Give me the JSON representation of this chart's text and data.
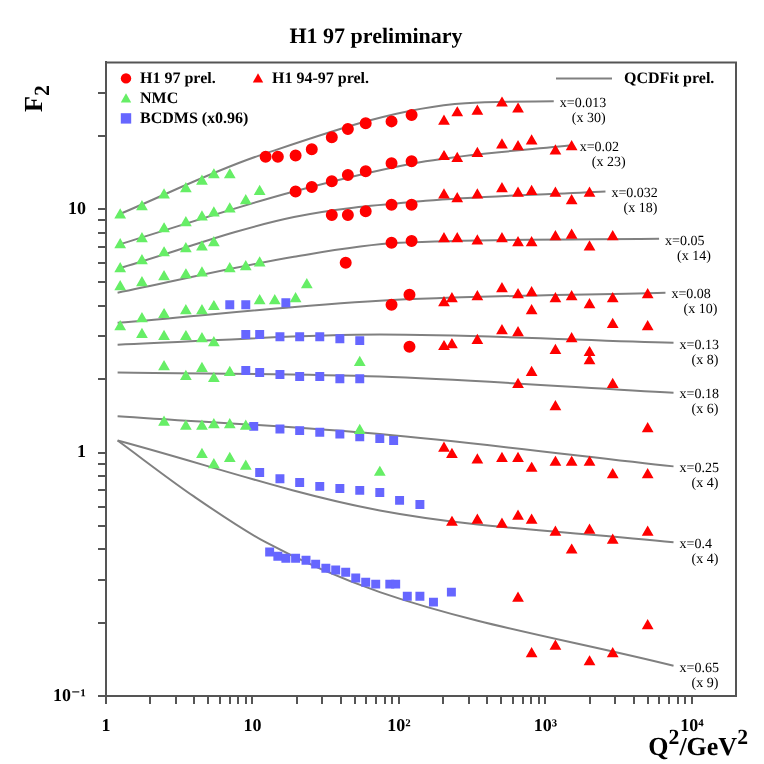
{
  "chart_data": {
    "type": "scatter",
    "title": "H1 97 preliminary",
    "xlabel": "Q$^{2}$/GeV$^{2}$",
    "ylabel": "F$_{2}$",
    "log": "xy",
    "xlim": [
      1,
      20000
    ],
    "ylim": [
      0.1,
      40
    ],
    "xticks": [
      1,
      {
        "value": 2,
        "label": null
      },
      {
        "value": 3,
        "label": null
      },
      {
        "value": 4,
        "label": null
      },
      {
        "value": 5,
        "label": null
      },
      {
        "value": 6,
        "label": null
      },
      {
        "value": 7,
        "label": null
      },
      {
        "value": 8,
        "label": null
      },
      {
        "value": 9,
        "label": null
      },
      10,
      {
        "value": 20,
        "label": null
      },
      {
        "value": 30,
        "label": null
      },
      {
        "value": 40,
        "label": null
      },
      {
        "value": 50,
        "label": null
      },
      {
        "value": 60,
        "label": null
      },
      {
        "value": 70,
        "label": null
      },
      {
        "value": 80,
        "label": null
      },
      {
        "value": 90,
        "label": null
      },
      {
        "value": 100,
        "label": "10²"
      },
      {
        "value": 200,
        "label": null
      },
      {
        "value": 300,
        "label": null
      },
      {
        "value": 400,
        "label": null
      },
      {
        "value": 500,
        "label": null
      },
      {
        "value": 600,
        "label": null
      },
      {
        "value": 700,
        "label": null
      },
      {
        "value": 800,
        "label": null
      },
      {
        "value": 900,
        "label": null
      },
      {
        "value": 1000,
        "label": "10³"
      },
      {
        "value": 2000,
        "label": null
      },
      {
        "value": 3000,
        "label": null
      },
      {
        "value": 4000,
        "label": null
      },
      {
        "value": 5000,
        "label": null
      },
      {
        "value": 6000,
        "label": null
      },
      {
        "value": 7000,
        "label": null
      },
      {
        "value": 8000,
        "label": null
      },
      {
        "value": 9000,
        "label": null
      },
      {
        "value": 10000,
        "label": "10⁴"
      }
    ],
    "yticks": [
      {
        "value": 0.1,
        "label": "10⁻¹"
      },
      {
        "value": 0.2,
        "label": null
      },
      {
        "value": 0.3,
        "label": null
      },
      {
        "value": 0.4,
        "label": null
      },
      {
        "value": 0.5,
        "label": null
      },
      {
        "value": 0.6,
        "label": null
      },
      {
        "value": 0.7,
        "label": null
      },
      {
        "value": 0.8,
        "label": null
      },
      {
        "value": 0.9,
        "label": null
      },
      1,
      {
        "value": 2,
        "label": null
      },
      {
        "value": 3,
        "label": null
      },
      {
        "value": 4,
        "label": null
      },
      {
        "value": 5,
        "label": null
      },
      {
        "value": 6,
        "label": null
      },
      {
        "value": 7,
        "label": null
      },
      {
        "value": 8,
        "label": null
      },
      {
        "value": 9,
        "label": null
      },
      10,
      {
        "value": 20,
        "label": null
      },
      {
        "value": 30,
        "label": null
      }
    ],
    "legend": "top left",
    "series": [
      {
        "type": "scatter",
        "name": "H1 97 prel.",
        "color": "#ff0000",
        "marker": "circle",
        "x": [
          12.3,
          14.9,
          19.7,
          25.4,
          34.8,
          44.8,
          59.3,
          89,
          122,
          19.7,
          25.4,
          34.8,
          44.8,
          59.3,
          89,
          122,
          34.8,
          44.8,
          59.3,
          89,
          122,
          43.3,
          89,
          122,
          89,
          118,
          118
        ],
        "values": [
          16.4,
          16.4,
          16.6,
          17.6,
          19.7,
          21.3,
          22.5,
          22.9,
          24.3,
          11.8,
          12.3,
          13.0,
          13.8,
          14.3,
          15.4,
          15.7,
          9.45,
          9.45,
          9.8,
          10.4,
          10.4,
          6.01,
          7.26,
          7.39,
          4.04,
          4.44,
          2.72
        ]
      },
      {
        "type": "scatter",
        "name": "H1 94-97 prel.",
        "color": "#ff0000",
        "marker": "triangle",
        "x": [
          203,
          250,
          343,
          505,
          650,
          203,
          250,
          343,
          505,
          650,
          805,
          1170,
          1510,
          203,
          250,
          343,
          505,
          650,
          805,
          1170,
          1510,
          2000,
          203,
          250,
          343,
          505,
          650,
          805,
          1170,
          1510,
          2000,
          2880,
          203,
          230,
          343,
          505,
          650,
          805,
          1170,
          1510,
          2000,
          2880,
          4990,
          203,
          230,
          343,
          505,
          650,
          805,
          1170,
          1510,
          2000,
          2000,
          2880,
          4990,
          650,
          805,
          1170,
          2880,
          4990,
          203,
          230,
          343,
          505,
          650,
          805,
          1170,
          1510,
          2000,
          2880,
          4990,
          230,
          343,
          505,
          650,
          805,
          1170,
          1510,
          2000,
          2880,
          4990,
          650,
          805,
          1170,
          2000,
          2880,
          4990
        ],
        "values": [
          22.9,
          24.8,
          25.2,
          27.2,
          25.7,
          16.4,
          16.1,
          16.9,
          18.3,
          18.0,
          19.0,
          17.3,
          18.0,
          11.4,
          11.0,
          11.4,
          12.1,
          11.6,
          11.8,
          11.6,
          10.8,
          11.6,
          7.54,
          7.54,
          7.39,
          7.54,
          7.26,
          7.26,
          7.68,
          7.8,
          6.97,
          7.68,
          4.12,
          4.28,
          4.36,
          4.7,
          4.44,
          4.53,
          4.28,
          4.36,
          4.04,
          4.28,
          4.44,
          2.72,
          2.77,
          2.88,
          3.16,
          3.1,
          3.82,
          2.62,
          2.93,
          2.57,
          2.38,
          3.35,
          3.28,
          1.9,
          2.13,
          1.54,
          1.9,
          1.25,
          1.04,
          0.98,
          0.93,
          0.945,
          0.945,
          0.86,
          0.91,
          0.91,
          0.91,
          0.81,
          0.81,
          0.516,
          0.527,
          0.507,
          0.547,
          0.527,
          0.47,
          0.397,
          0.479,
          0.436,
          0.47,
          0.252,
          0.149,
          0.16,
          0.138,
          0.149,
          0.194
        ]
      },
      {
        "type": "scatter",
        "name": "NMC",
        "color": "#66ee66",
        "marker": "triangle",
        "x": [
          1.25,
          1.76,
          2.49,
          3.51,
          4.52,
          5.45,
          7.0,
          1.25,
          1.76,
          2.49,
          3.51,
          4.52,
          5.45,
          7.0,
          9.0,
          11.2,
          1.25,
          1.76,
          2.49,
          3.51,
          4.52,
          5.45,
          1.25,
          1.76,
          2.49,
          3.51,
          4.52,
          7.0,
          9.0,
          11.2,
          23.5,
          1.25,
          1.76,
          2.49,
          3.51,
          4.52,
          5.45,
          11.2,
          14.2,
          19.7,
          1.76,
          2.49,
          3.51,
          4.52,
          5.45,
          2.49,
          3.51,
          4.52,
          5.45,
          7.0,
          54,
          2.49,
          3.51,
          4.52,
          5.45,
          7.0,
          9.0,
          54,
          4.52,
          5.45,
          7.0,
          9.0,
          74
        ],
        "values": [
          9.45,
          10.2,
          11.4,
          12.1,
          13.0,
          13.8,
          13.8,
          7.12,
          7.54,
          8.28,
          8.77,
          9.27,
          9.63,
          10.0,
          10.8,
          11.8,
          5.68,
          6.13,
          6.6,
          6.86,
          6.97,
          7.26,
          4.79,
          4.98,
          5.27,
          5.36,
          5.46,
          5.68,
          5.79,
          6.0,
          4.88,
          3.28,
          3.54,
          3.68,
          3.82,
          3.82,
          3.97,
          4.2,
          4.2,
          4.28,
          3.05,
          2.99,
          2.99,
          2.93,
          2.82,
          2.25,
          2.05,
          2.21,
          2.01,
          2.13,
          2.34,
          1.33,
          1.28,
          1.28,
          1.3,
          1.3,
          1.28,
          1.23,
          0.98,
          0.89,
          0.945,
          0.877,
          0.828
        ]
      },
      {
        "type": "scatter",
        "name": "BCDMS (x0.96)",
        "color": "#6666ff",
        "marker": "square",
        "x": [
          7.0,
          9.0,
          16.9,
          9.0,
          11.2,
          15.4,
          21,
          28.8,
          39.5,
          54,
          9.0,
          11.2,
          15.4,
          21,
          28.8,
          39.5,
          54,
          10.2,
          15.4,
          21,
          28.8,
          39.5,
          54,
          74,
          92,
          11.2,
          15.4,
          21,
          28.8,
          39.5,
          54,
          74,
          101,
          139,
          13.1,
          14.9,
          16.9,
          19.7,
          23.2,
          27.0,
          31.7,
          37.0,
          43.3,
          50.7,
          59.3,
          69.4,
          86.6,
          95,
          114,
          139,
          172,
          228
        ],
        "values": [
          4.04,
          4.04,
          4.12,
          3.05,
          3.05,
          2.99,
          2.99,
          2.99,
          2.93,
          2.88,
          2.17,
          2.13,
          2.09,
          2.05,
          2.05,
          2.01,
          2.01,
          1.28,
          1.25,
          1.23,
          1.21,
          1.19,
          1.16,
          1.14,
          1.12,
          0.828,
          0.78,
          0.753,
          0.726,
          0.712,
          0.699,
          0.685,
          0.636,
          0.612,
          0.39,
          0.375,
          0.368,
          0.368,
          0.361,
          0.348,
          0.335,
          0.329,
          0.322,
          0.305,
          0.293,
          0.288,
          0.288,
          0.288,
          0.257,
          0.257,
          0.243,
          0.267
        ]
      },
      {
        "type": "line",
        "name": "QCDFit prel.",
        "color": "#808080",
        "marker": "none",
        "x": [
          1.2,
          11.2,
          285,
          1140
        ],
        "values": [
          9.45,
          16.6,
          27.2,
          27.7
        ]
      },
      {
        "type": "line",
        "color": "#808080",
        "marker": "none",
        "x": [
          1.2,
          19.2,
          152,
          1560
        ],
        "values": [
          7.12,
          11.8,
          15.7,
          18.3
        ]
      },
      {
        "type": "line",
        "color": "#808080",
        "marker": "none",
        "x": [
          1.2,
          19.2,
          152,
          2570
        ],
        "values": [
          5.68,
          9.27,
          10.8,
          11.8
        ]
      },
      {
        "type": "line",
        "color": "#808080",
        "marker": "none",
        "x": [
          1.2,
          19.2,
          101,
          5970
        ],
        "values": [
          4.53,
          6.36,
          7.26,
          7.54
        ]
      },
      {
        "type": "line",
        "color": "#808080",
        "marker": "none",
        "x": [
          1.2,
          74,
          6600
        ],
        "values": [
          3.41,
          4.2,
          4.53
        ]
      },
      {
        "type": "line",
        "color": "#808080",
        "marker": "none",
        "x": [
          1.2,
          74,
          7490
        ],
        "values": [
          2.77,
          3.05,
          2.82
        ]
      },
      {
        "type": "line",
        "color": "#808080",
        "marker": "none",
        "x": [
          1.2,
          74,
          7490
        ],
        "values": [
          2.13,
          2.05,
          1.76
        ]
      },
      {
        "type": "line",
        "color": "#808080",
        "marker": "none",
        "x": [
          1.2,
          74,
          7490
        ],
        "values": [
          1.41,
          1.19,
          0.877
        ]
      },
      {
        "type": "line",
        "color": "#808080",
        "marker": "none",
        "x": [
          1.2,
          74,
          7490
        ],
        "values": [
          1.12,
          0.578,
          0.428
        ]
      },
      {
        "type": "line",
        "color": "#808080",
        "marker": "none",
        "x": [
          1.2,
          3.98,
          12.3,
          74,
          7490
        ],
        "values": [
          1.12,
          0.66,
          0.428,
          0.267,
          0.133
        ]
      }
    ],
    "annotations": [
      {
        "text": "x=0.013\n(x 30)",
        "x": 1140,
        "y": 27.7
      },
      {
        "text": "x=0.02\n(x 23)",
        "x": 1560,
        "y": 18.3
      },
      {
        "text": "x=0.032\n(x 18)",
        "x": 2570,
        "y": 11.8
      },
      {
        "text": "x=0.05\n(x 14)",
        "x": 5970,
        "y": 7.54
      },
      {
        "text": "x=0.08\n(x 10)",
        "x": 6600,
        "y": 4.53
      },
      {
        "text": "x=0.13\n(x 8)",
        "x": 7490,
        "y": 2.82
      },
      {
        "text": "x=0.18\n(x 6)",
        "x": 7490,
        "y": 1.76
      },
      {
        "text": "x=0.25\n(x 4)",
        "x": 7490,
        "y": 0.877
      },
      {
        "text": "x=0.4\n(x 4)",
        "x": 7490,
        "y": 0.428
      },
      {
        "text": "x=0.65\n(x 9)",
        "x": 7490,
        "y": 0.133
      }
    ]
  }
}
